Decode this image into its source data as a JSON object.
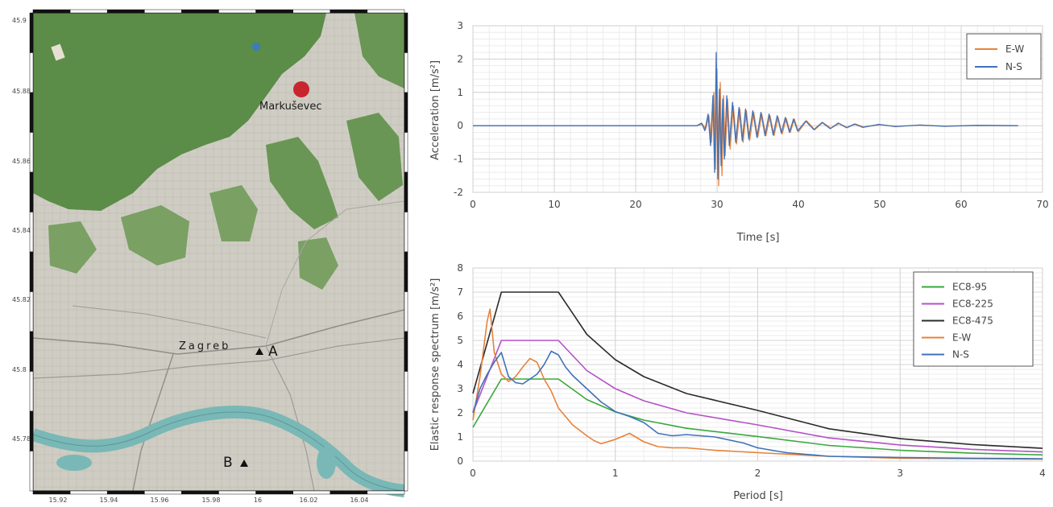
{
  "map": {
    "lat_ticks": [
      "45.9",
      "45.88",
      "45.86",
      "45.84",
      "45.82",
      "45.8",
      "45.78"
    ],
    "lon_ticks": [
      "15.92",
      "15.94",
      "15.96",
      "15.98",
      "16",
      "16.02",
      "16.04"
    ],
    "epicenter_label": "Markuševec",
    "city_label": "Zagreb",
    "station_a_label": "A",
    "station_b_label": "B",
    "colors": {
      "epicenter": "#c8262e",
      "forest": "#5b8c48",
      "urban": "#c9c7bc",
      "river": "#79b8b6"
    }
  },
  "chart_data": [
    {
      "type": "line",
      "xlabel": "Time [s]",
      "ylabel": "Acceleration [m/s²]",
      "xlim": [
        0,
        70
      ],
      "ylim": [
        -2,
        3
      ],
      "xticks": [
        "0",
        "10",
        "20",
        "30",
        "40",
        "50",
        "60",
        "70"
      ],
      "yticks": [
        "-2",
        "-1",
        "0",
        "1",
        "2",
        "3"
      ],
      "grid": true,
      "legend_position": "top-right",
      "series": [
        {
          "name": "E-W",
          "color": "#e8823a",
          "x": [
            0,
            27.5,
            28.2,
            28.6,
            29,
            29.3,
            29.6,
            29.8,
            30.0,
            30.2,
            30.4,
            30.6,
            30.8,
            31.0,
            31.3,
            31.6,
            32.0,
            32.4,
            32.8,
            33.2,
            33.6,
            34.0,
            34.5,
            35.0,
            35.5,
            36.0,
            36.5,
            37.0,
            37.5,
            38.0,
            38.5,
            39.0,
            39.5,
            40.0,
            41.0,
            42.0,
            43.0,
            44.0,
            45.0,
            46.0,
            47.0,
            48.0,
            50.0,
            52.0,
            55.0,
            58.0,
            62.0,
            67.0
          ],
          "y": [
            0,
            0,
            0.05,
            -0.1,
            0.3,
            -0.5,
            1.0,
            -1.3,
            1.7,
            -1.8,
            1.3,
            -1.5,
            0.9,
            -0.9,
            0.8,
            -0.7,
            0.6,
            -0.55,
            0.5,
            -0.5,
            0.45,
            -0.45,
            0.4,
            -0.35,
            0.35,
            -0.3,
            0.3,
            -0.3,
            0.25,
            -0.25,
            0.22,
            -0.2,
            0.2,
            -0.18,
            0.15,
            -0.12,
            0.1,
            -0.08,
            0.07,
            -0.06,
            0.05,
            -0.04,
            0.03,
            -0.02,
            0.02,
            -0.01,
            0.01,
            0
          ]
        },
        {
          "name": "N-S",
          "color": "#3f72b8",
          "x": [
            0,
            27.5,
            28.1,
            28.5,
            28.9,
            29.2,
            29.5,
            29.7,
            29.9,
            30.1,
            30.3,
            30.5,
            30.7,
            30.9,
            31.2,
            31.5,
            31.9,
            32.3,
            32.7,
            33.1,
            33.5,
            33.9,
            34.4,
            34.9,
            35.4,
            35.9,
            36.4,
            36.9,
            37.4,
            37.9,
            38.4,
            38.9,
            39.4,
            39.9,
            40.9,
            41.9,
            42.9,
            43.9,
            44.9,
            45.9,
            46.9,
            47.9,
            49.9,
            51.9,
            54.9,
            57.9,
            61.9,
            67.0
          ],
          "y": [
            0,
            0,
            0.08,
            -0.15,
            0.35,
            -0.6,
            0.9,
            -1.4,
            2.2,
            -1.6,
            1.1,
            -1.2,
            0.8,
            -1.0,
            0.9,
            -0.6,
            0.7,
            -0.5,
            0.55,
            -0.45,
            0.5,
            -0.4,
            0.45,
            -0.35,
            0.4,
            -0.3,
            0.35,
            -0.28,
            0.3,
            -0.22,
            0.25,
            -0.2,
            0.2,
            -0.16,
            0.14,
            -0.12,
            0.1,
            -0.09,
            0.08,
            -0.06,
            0.05,
            -0.05,
            0.04,
            -0.03,
            0.02,
            -0.02,
            0.01,
            0
          ]
        }
      ]
    },
    {
      "type": "line",
      "xlabel": "Period [s]",
      "ylabel": "Elastic response spectrum [m/s²]",
      "xlim": [
        0,
        4
      ],
      "ylim": [
        0,
        8
      ],
      "xticks": [
        "0",
        "1",
        "2",
        "3",
        "4"
      ],
      "yticks": [
        "0",
        "1",
        "2",
        "3",
        "4",
        "5",
        "6",
        "7",
        "8"
      ],
      "grid": true,
      "legend_position": "top-right",
      "series": [
        {
          "name": "EC8-95",
          "color": "#38a83c",
          "x": [
            0,
            0.2,
            0.6,
            0.8,
            1.0,
            1.2,
            1.5,
            2.0,
            2.5,
            3.0,
            3.5,
            4.0
          ],
          "y": [
            1.4,
            3.4,
            3.4,
            2.55,
            2.04,
            1.7,
            1.36,
            1.02,
            0.65,
            0.45,
            0.33,
            0.26
          ]
        },
        {
          "name": "EC8-225",
          "color": "#b451c7",
          "x": [
            0,
            0.2,
            0.6,
            0.8,
            1.0,
            1.2,
            1.5,
            2.0,
            2.5,
            3.0,
            3.5,
            4.0
          ],
          "y": [
            2.0,
            5.0,
            5.0,
            3.75,
            3.0,
            2.5,
            2.0,
            1.5,
            0.96,
            0.67,
            0.49,
            0.38
          ]
        },
        {
          "name": "EC8-475",
          "color": "#2b2b2b",
          "x": [
            0,
            0.2,
            0.6,
            0.8,
            1.0,
            1.2,
            1.5,
            2.0,
            2.5,
            3.0,
            3.5,
            4.0
          ],
          "y": [
            2.8,
            7.0,
            7.0,
            5.25,
            4.2,
            3.5,
            2.8,
            2.1,
            1.34,
            0.93,
            0.69,
            0.53
          ]
        },
        {
          "name": "E-W",
          "color": "#e8823a",
          "x": [
            0,
            0.05,
            0.1,
            0.12,
            0.15,
            0.2,
            0.25,
            0.3,
            0.35,
            0.4,
            0.45,
            0.5,
            0.55,
            0.6,
            0.7,
            0.8,
            0.85,
            0.9,
            1.0,
            1.1,
            1.2,
            1.3,
            1.4,
            1.5,
            1.7,
            2.0,
            2.5,
            3.0,
            3.5,
            4.0
          ],
          "y": [
            1.7,
            3.5,
            5.8,
            6.3,
            4.5,
            3.6,
            3.3,
            3.5,
            3.9,
            4.25,
            4.1,
            3.4,
            2.9,
            2.2,
            1.5,
            1.05,
            0.85,
            0.72,
            0.9,
            1.15,
            0.8,
            0.6,
            0.55,
            0.55,
            0.45,
            0.35,
            0.2,
            0.12,
            0.1,
            0.08
          ]
        },
        {
          "name": "N-S",
          "color": "#3f72b8",
          "x": [
            0,
            0.05,
            0.1,
            0.15,
            0.2,
            0.25,
            0.3,
            0.35,
            0.4,
            0.45,
            0.5,
            0.55,
            0.6,
            0.65,
            0.7,
            0.8,
            0.9,
            1.0,
            1.1,
            1.2,
            1.3,
            1.4,
            1.5,
            1.7,
            1.9,
            2.0,
            2.2,
            2.5,
            3.0,
            3.5,
            4.0
          ],
          "y": [
            2.0,
            3.0,
            3.6,
            4.1,
            4.5,
            3.5,
            3.25,
            3.2,
            3.4,
            3.6,
            4.0,
            4.55,
            4.4,
            3.9,
            3.55,
            3.0,
            2.45,
            2.05,
            1.85,
            1.6,
            1.15,
            1.05,
            1.1,
            1.0,
            0.75,
            0.55,
            0.35,
            0.2,
            0.15,
            0.12,
            0.1
          ]
        }
      ]
    }
  ]
}
